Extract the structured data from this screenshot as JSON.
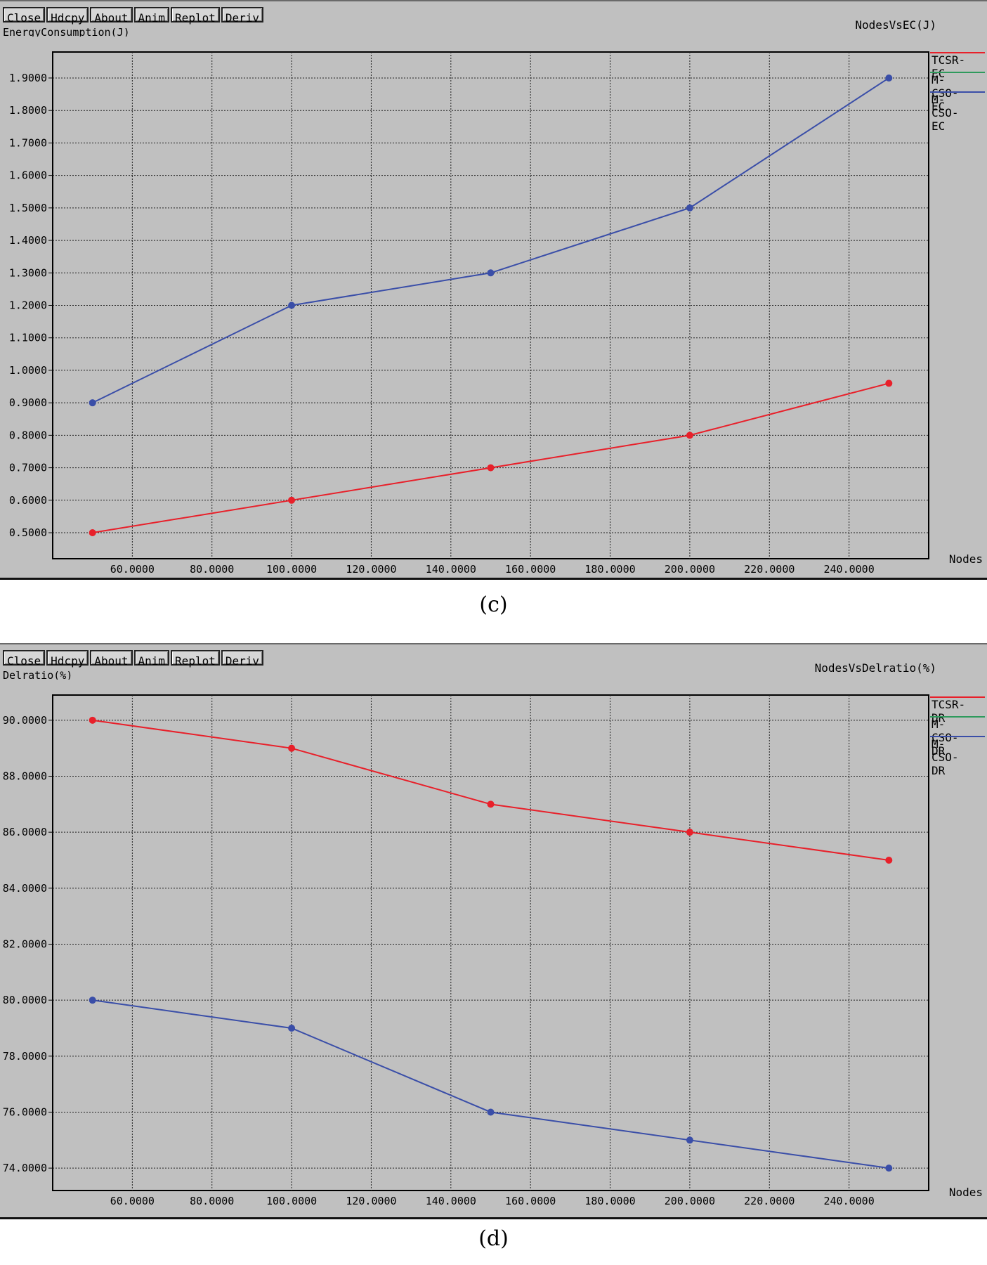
{
  "toolbar": [
    "Close",
    "Hdcpy",
    "About",
    "Anim",
    "Replot",
    "Deriv"
  ],
  "chart_data": [
    {
      "type": "line",
      "title": "NodesVsEC(J)",
      "ylabel": "EnergyConsumption(J)",
      "xlabel": "Nodes",
      "caption": "(c)",
      "xlim": [
        40,
        260
      ],
      "ylim": [
        0.42,
        1.98
      ],
      "x_ticks": [
        60,
        80,
        100,
        120,
        140,
        160,
        180,
        200,
        220,
        240
      ],
      "x_tick_labels": [
        "60.0000",
        "80.0000",
        "100.0000",
        "120.0000",
        "140.0000",
        "160.0000",
        "180.0000",
        "200.0000",
        "220.0000",
        "240.0000"
      ],
      "y_ticks": [
        0.5,
        0.6,
        0.7,
        0.8,
        0.9,
        1.0,
        1.1,
        1.2,
        1.3,
        1.4,
        1.5,
        1.6,
        1.7,
        1.8,
        1.9
      ],
      "y_tick_labels": [
        "0.5000",
        "0.6000",
        "0.7000",
        "0.8000",
        "0.9000",
        "1.0000",
        "1.1000",
        "1.2000",
        "1.3000",
        "1.4000",
        "1.5000",
        "1.6000",
        "1.7000",
        "1.8000",
        "1.9000"
      ],
      "grid": true,
      "legend": [
        {
          "label": "TCSR-EC",
          "color": "#e8202a"
        },
        {
          "label": "M-CSO-EC",
          "color": "#2e9a5c"
        },
        {
          "label": "M-CSO-EC",
          "color": "#3a4ea8"
        }
      ],
      "series": [
        {
          "color": "#e8202a",
          "x": [
            50,
            100,
            150,
            200,
            250
          ],
          "y": [
            0.5,
            0.6,
            0.7,
            0.8,
            0.96
          ]
        },
        {
          "color": "#3a4ea8",
          "x": [
            50,
            100,
            150,
            200,
            250
          ],
          "y": [
            0.9,
            1.2,
            1.3,
            1.5,
            1.9
          ]
        }
      ]
    },
    {
      "type": "line",
      "title": "NodesVsDelratio(%)",
      "ylabel": "Delratio(%)",
      "xlabel": "Nodes",
      "caption": "(d)",
      "xlim": [
        40,
        260
      ],
      "ylim": [
        73.2,
        90.9
      ],
      "x_ticks": [
        60,
        80,
        100,
        120,
        140,
        160,
        180,
        200,
        220,
        240
      ],
      "x_tick_labels": [
        "60.0000",
        "80.0000",
        "100.0000",
        "120.0000",
        "140.0000",
        "160.0000",
        "180.0000",
        "200.0000",
        "220.0000",
        "240.0000"
      ],
      "y_ticks": [
        74,
        76,
        78,
        80,
        82,
        84,
        86,
        88,
        90
      ],
      "y_tick_labels": [
        "74.0000",
        "76.0000",
        "78.0000",
        "80.0000",
        "82.0000",
        "84.0000",
        "86.0000",
        "88.0000",
        "90.0000"
      ],
      "grid": true,
      "legend": [
        {
          "label": "TCSR-DR",
          "color": "#e8202a"
        },
        {
          "label": "M-CSO-DR",
          "color": "#2e9a5c"
        },
        {
          "label": "M-CSO-DR",
          "color": "#3a4ea8"
        }
      ],
      "series": [
        {
          "color": "#e8202a",
          "x": [
            50,
            100,
            150,
            200,
            250
          ],
          "y": [
            90,
            89,
            87,
            86,
            85
          ]
        },
        {
          "color": "#3a4ea8",
          "x": [
            50,
            100,
            150,
            200,
            250
          ],
          "y": [
            80,
            79,
            76,
            75,
            74
          ]
        }
      ]
    }
  ]
}
